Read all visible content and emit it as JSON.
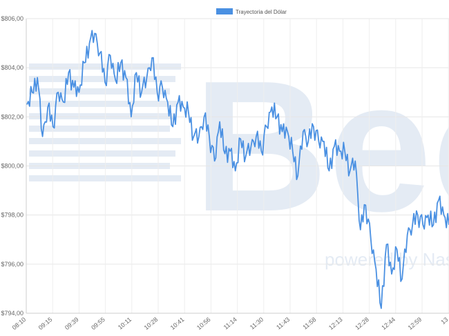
{
  "legend": {
    "label": "Trayectoria del Dólar",
    "color": "#4a90e2"
  },
  "watermark": {
    "text": "Bec",
    "sub_text": "powered by Nasdaq",
    "color": "#e4ebf4"
  },
  "chart_data": {
    "type": "line",
    "title": "",
    "xlabel": "",
    "ylabel": "",
    "ylim": [
      794,
      806
    ],
    "yticks": [
      794,
      796,
      798,
      800,
      802,
      804,
      806
    ],
    "ytick_labels": [
      "$794,00",
      "$796,00",
      "$798,00",
      "$800,00",
      "$802,00",
      "$804,00",
      "$806,00"
    ],
    "xtick_labels": [
      "08:10",
      "09:15",
      "09:39",
      "09:55",
      "10:11",
      "10:28",
      "10:41",
      "10:56",
      "11:14",
      "11:30",
      "11:43",
      "11:58",
      "12:13",
      "12:28",
      "12:44",
      "12:59",
      "13"
    ],
    "grid": true,
    "legend_position": "top-center",
    "series": [
      {
        "name": "Trayectoria del Dólar",
        "color": "#4a90e2",
        "values": [
          802.5,
          803.0,
          803.6,
          801.2,
          802.4,
          801.6,
          803.0,
          802.6,
          803.8,
          803.2,
          803.0,
          804.2,
          805.0,
          805.4,
          804.6,
          803.4,
          804.5,
          803.5,
          804.2,
          803.6,
          802.0,
          803.8,
          803.0,
          803.6,
          804.4,
          803.0,
          803.2,
          802.6,
          801.6,
          802.6,
          802.4,
          802.2,
          801.2,
          801.2,
          802.0,
          801.2,
          800.2,
          801.8,
          800.5,
          800.6,
          799.8,
          801.1,
          800.4,
          800.8,
          801.2,
          800.6,
          801.6,
          802.4,
          802.0,
          801.4,
          801.4,
          800.6,
          799.6,
          801.4,
          801.0,
          801.6,
          801.0,
          801.0,
          799.8,
          800.8,
          800.6,
          800.6,
          799.8,
          800.2,
          797.4,
          798.4,
          797.0,
          795.8,
          794.2,
          796.8,
          795.6,
          796.6,
          795.4,
          797.2,
          797.6,
          798.0,
          797.6,
          798.0,
          797.6,
          798.6,
          798.0,
          797.6
        ]
      }
    ]
  }
}
